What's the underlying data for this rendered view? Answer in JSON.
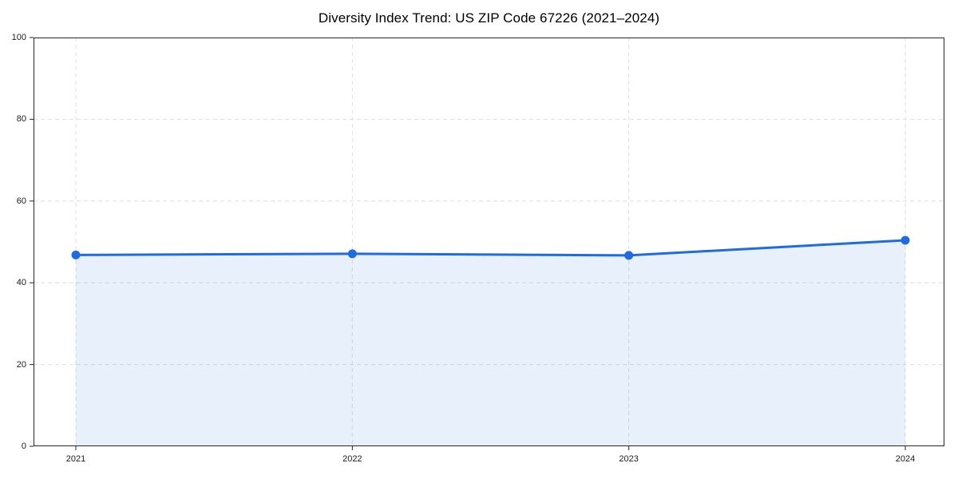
{
  "chart_data": {
    "type": "area",
    "title": "Diversity Index Trend: US ZIP Code 67226 (2021–2024)",
    "categories": [
      "2021",
      "2022",
      "2023",
      "2024"
    ],
    "x": [
      2021,
      2022,
      2023,
      2024
    ],
    "series": [
      {
        "name": "Diversity Index",
        "values": [
          46.8,
          47.1,
          46.7,
          50.4
        ]
      }
    ],
    "xlabel": "",
    "ylabel": "",
    "ylim": [
      0,
      100
    ],
    "yticks": [
      0,
      20,
      40,
      60,
      80,
      100
    ],
    "ytick_labels": [
      "0",
      "20",
      "40",
      "60",
      "80",
      "100"
    ],
    "grid": true,
    "grid_style": "dashed",
    "legend": "none",
    "marker": "circle",
    "colors": {
      "line": "#1f6ce0",
      "fill_opacity": 0.1,
      "grid": "#dedede",
      "spine": "#262626",
      "text": "#1a1a1a",
      "background": "#ffffff"
    }
  }
}
